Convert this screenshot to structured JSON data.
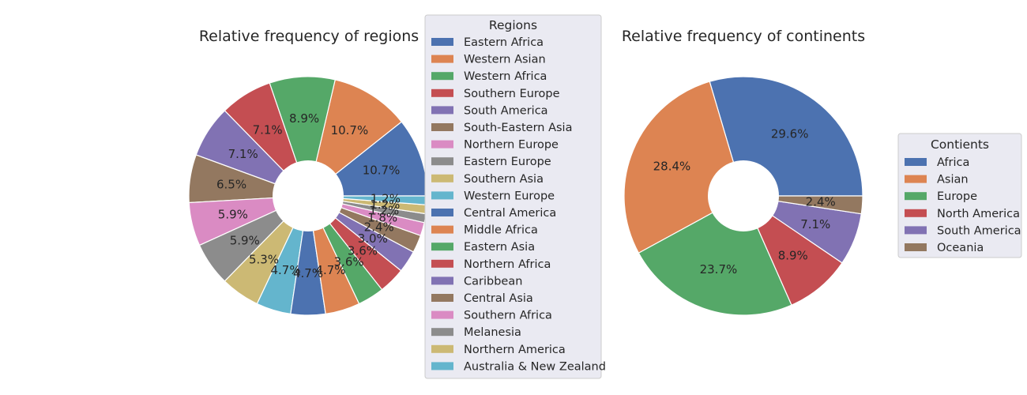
{
  "colors": {
    "palette": [
      "#4c72b0",
      "#dd8452",
      "#55a868",
      "#c44e52",
      "#8172b3",
      "#937860",
      "#da8bc3",
      "#8c8c8c",
      "#ccb974",
      "#64b5cd"
    ],
    "legend_bg": "#eaeaf2",
    "wedge_edge": "#ffffff"
  },
  "chart_data": [
    {
      "type": "pie",
      "subtype": "donut",
      "title": "Relative frequency of regions",
      "legend_title": "Regions",
      "legend_placement": "right, overlapping the chart",
      "start_angle_deg": 0,
      "direction": "counterclockwise",
      "categories": [
        "Eastern Africa",
        "Western Asian",
        "Western Africa",
        "Southern Europe",
        "South America",
        "South-Eastern Asia",
        "Northern Europe",
        "Eastern Europe",
        "Southern Asia",
        "Western Europe",
        "Central America",
        "Middle Africa",
        "Eastern Asia",
        "Northern Africa",
        "Caribbean",
        "Central Asia",
        "Southern Africa",
        "Melanesia",
        "Northern America",
        "Australia & New Zealand"
      ],
      "values": [
        10.7,
        10.7,
        8.9,
        7.1,
        7.1,
        6.5,
        5.9,
        5.9,
        5.3,
        4.7,
        4.7,
        4.7,
        3.6,
        3.6,
        3.0,
        2.4,
        1.8,
        1.2,
        1.2,
        1.2
      ],
      "labels": [
        "10.7%",
        "10.7%",
        "8.9%",
        "7.1%",
        "7.1%",
        "6.5%",
        "5.9%",
        "5.9%",
        "5.3%",
        "4.7%",
        "4.7%",
        "4.7%",
        "3.6%",
        "3.6%",
        "3.0%",
        "2.4%",
        "1.8%",
        "1.2%",
        "1.2%",
        "1.2%"
      ]
    },
    {
      "type": "pie",
      "subtype": "donut",
      "title": "Relative frequency of continents",
      "legend_title": "Contients",
      "legend_placement": "right",
      "start_angle_deg": 0,
      "direction": "counterclockwise",
      "categories": [
        "Africa",
        "Asian",
        "Europe",
        "North America",
        "South America",
        "Oceania"
      ],
      "values": [
        29.6,
        28.4,
        23.7,
        8.9,
        7.1,
        2.4
      ],
      "labels": [
        "29.6%",
        "28.4%",
        "23.7%",
        "8.9%",
        "7.1%",
        "2.4%"
      ]
    }
  ]
}
